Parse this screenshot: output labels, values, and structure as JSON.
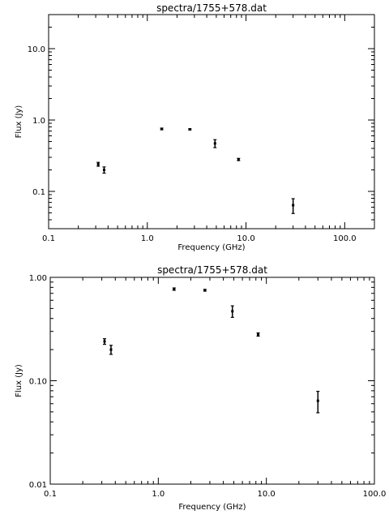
{
  "chart_data": [
    {
      "type": "scatter",
      "title": "spectra/1755+578.dat",
      "xlabel": "Frequency (GHz)",
      "ylabel": "Flux (Jy)",
      "xscale": "log",
      "yscale": "log",
      "xlim": [
        0.1,
        200
      ],
      "ylim": [
        0.03,
        30
      ],
      "xtick_labels": [
        "0.1",
        "1.0",
        "10.0",
        "100.0"
      ],
      "xtick_values": [
        0.1,
        1,
        10,
        100
      ],
      "ytick_labels": [
        "0.1",
        "1.0",
        "10.0"
      ],
      "ytick_values": [
        0.1,
        1,
        10
      ],
      "grid": false,
      "legend": "none",
      "points": [
        {
          "x": 0.318,
          "y": 0.24,
          "err": 0.015
        },
        {
          "x": 0.365,
          "y": 0.2,
          "err": 0.02
        },
        {
          "x": 1.4,
          "y": 0.75,
          "err": 0.02
        },
        {
          "x": 2.7,
          "y": 0.74,
          "err": 0.015
        },
        {
          "x": 4.85,
          "y": 0.47,
          "err": 0.06
        },
        {
          "x": 8.4,
          "y": 0.28,
          "err": 0.01
        },
        {
          "x": 30.0,
          "y": 0.064,
          "err": 0.015
        }
      ]
    },
    {
      "type": "scatter",
      "title": "spectra/1755+578.dat",
      "xlabel": "Frequency (GHz)",
      "ylabel": "Flux (Jy)",
      "xscale": "log",
      "yscale": "log",
      "xlim": [
        0.1,
        100
      ],
      "ylim": [
        0.01,
        1
      ],
      "xtick_labels": [
        "0.1",
        "1.0",
        "10.0",
        "100.0"
      ],
      "xtick_values": [
        0.1,
        1,
        10,
        100
      ],
      "ytick_labels": [
        "0.01",
        "0.10",
        "1.00"
      ],
      "ytick_values": [
        0.01,
        0.1,
        1
      ],
      "grid": false,
      "legend": "none",
      "points": [
        {
          "x": 0.318,
          "y": 0.24,
          "err": 0.015
        },
        {
          "x": 0.365,
          "y": 0.2,
          "err": 0.02
        },
        {
          "x": 1.4,
          "y": 0.77,
          "err": 0.02
        },
        {
          "x": 2.7,
          "y": 0.75,
          "err": 0.015
        },
        {
          "x": 4.85,
          "y": 0.47,
          "err": 0.06
        },
        {
          "x": 8.4,
          "y": 0.28,
          "err": 0.01
        },
        {
          "x": 30.0,
          "y": 0.064,
          "err": 0.015
        }
      ]
    }
  ]
}
